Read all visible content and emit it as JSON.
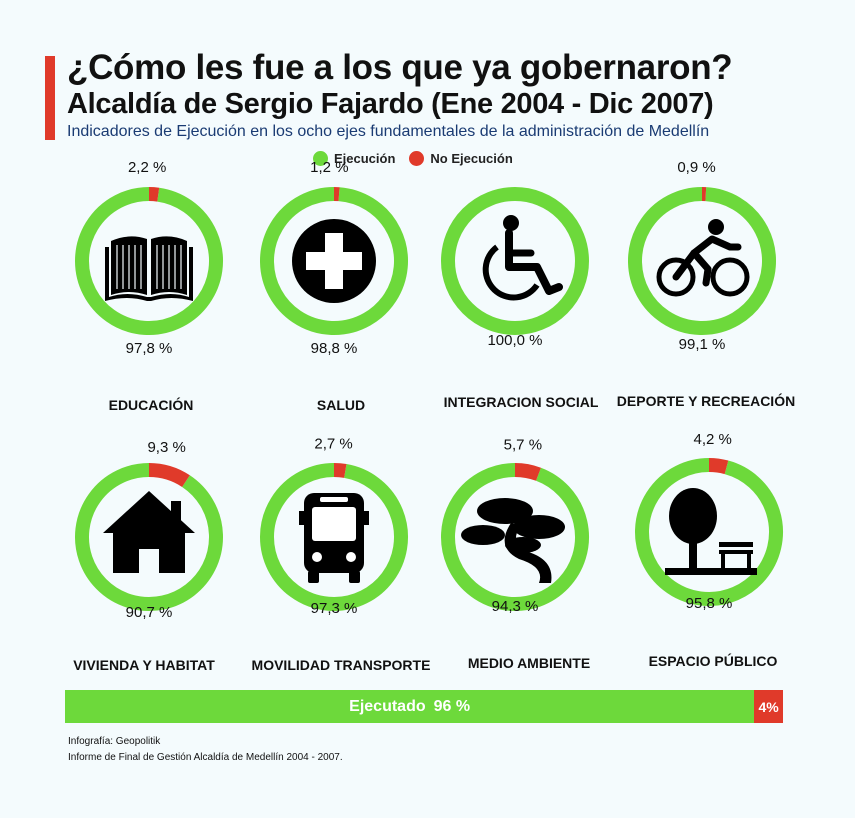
{
  "header": {
    "title": "¿Cómo les fue a los que ya gobernaron?",
    "subtitle": "Alcaldía de Sergio Fajardo (Ene 2004 - Dic 2007)",
    "description": "Indicadores de Ejecución en los ocho ejes fundamentales de la administración de Medellín"
  },
  "legend": {
    "execution_label": "Ejecución",
    "no_execution_label": "No Ejecución"
  },
  "colors": {
    "execution": "#6dd93b",
    "no_execution": "#e03a2a",
    "accent": "#e03a2a"
  },
  "chart_data": {
    "type": "pie",
    "variant": "donut",
    "series": [
      {
        "name": "Ejecución"
      },
      {
        "name": "No Ejecución"
      }
    ],
    "categories": [
      {
        "label": "EDUCACIÓN",
        "icon": "book-icon",
        "execution": 97.8,
        "no_execution": 2.2,
        "execution_text": "97,8 %",
        "no_execution_text": "2,2 %"
      },
      {
        "label": "SALUD",
        "icon": "medical-cross-icon",
        "execution": 98.8,
        "no_execution": 1.2,
        "execution_text": "98,8 %",
        "no_execution_text": "1,2 %"
      },
      {
        "label": "INTEGRACION SOCIAL",
        "icon": "wheelchair-icon",
        "execution": 100.0,
        "no_execution": 0.0,
        "execution_text": "100,0 %",
        "no_execution_text": ""
      },
      {
        "label": "DEPORTE Y RECREACIÓN",
        "icon": "cyclist-icon",
        "execution": 99.1,
        "no_execution": 0.9,
        "execution_text": "99,1 %",
        "no_execution_text": "0,9 %"
      },
      {
        "label": "VIVIENDA Y HABITAT",
        "icon": "house-icon",
        "execution": 90.7,
        "no_execution": 9.3,
        "execution_text": "90,7 %",
        "no_execution_text": "9,3 %"
      },
      {
        "label": "MOVILIDAD TRANSPORTE",
        "icon": "bus-icon",
        "execution": 97.3,
        "no_execution": 2.7,
        "execution_text": "97,3 %",
        "no_execution_text": "2,7 %"
      },
      {
        "label": "MEDIO AMBIENTE",
        "icon": "bonsai-tree-icon",
        "execution": 94.3,
        "no_execution": 5.7,
        "execution_text": "94,3 %",
        "no_execution_text": "5,7 %"
      },
      {
        "label": "ESPACIO PÚBLICO",
        "icon": "park-bench-icon",
        "execution": 95.8,
        "no_execution": 4.2,
        "execution_text": "95,8 %",
        "no_execution_text": "4,2 %"
      }
    ],
    "total": {
      "executed_label": "Ejecutado",
      "executed_text": "96 %",
      "executed": 96,
      "not_executed": 4,
      "not_executed_text": "4%"
    }
  },
  "sources": {
    "line1": "Infografía: Geopolitik",
    "line2": "Informe de Final de Gestión Alcaldía de Medellín 2004 - 2007."
  }
}
